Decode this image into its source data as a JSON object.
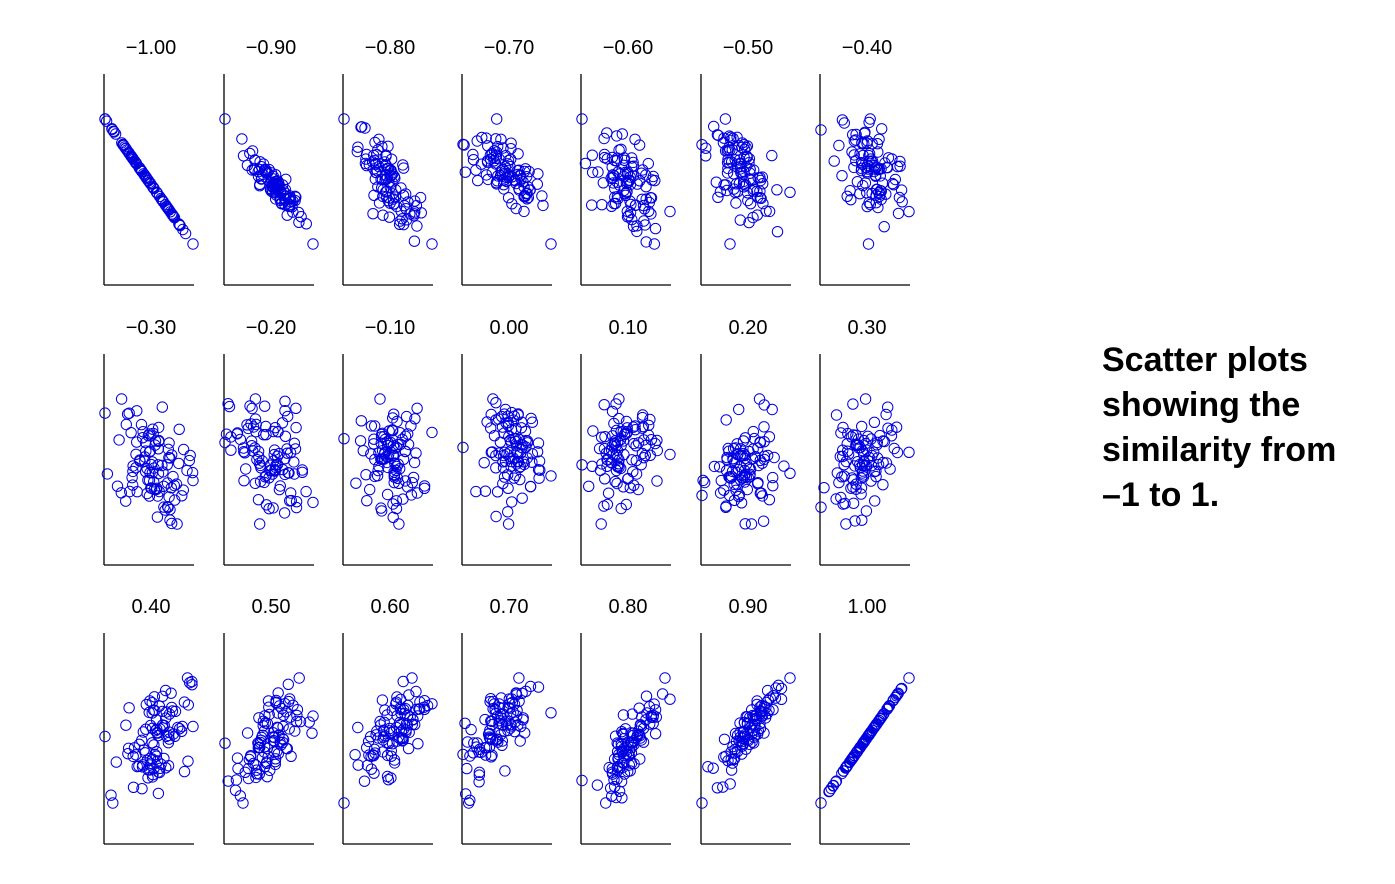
{
  "caption": {
    "lines": [
      "Scatter plots",
      "showing the",
      "similarity from",
      "–1 to 1."
    ]
  },
  "marker_color": "#0000e0",
  "chart_data": {
    "type": "scatter",
    "marker": "open-circle",
    "axes": "left-and-bottom-lines-only",
    "ticks": "none",
    "points_per_panel": 100,
    "layout": "3 rows x 7 columns",
    "panels": [
      {
        "title": "−1.00",
        "correlation": -1.0
      },
      {
        "title": "−0.90",
        "correlation": -0.9
      },
      {
        "title": "−0.80",
        "correlation": -0.8
      },
      {
        "title": "−0.70",
        "correlation": -0.7
      },
      {
        "title": "−0.60",
        "correlation": -0.6
      },
      {
        "title": "−0.50",
        "correlation": -0.5
      },
      {
        "title": "−0.40",
        "correlation": -0.4
      },
      {
        "title": "−0.30",
        "correlation": -0.3
      },
      {
        "title": "−0.20",
        "correlation": -0.2
      },
      {
        "title": "−0.10",
        "correlation": -0.1
      },
      {
        "title": "0.00",
        "correlation": 0.0
      },
      {
        "title": "0.10",
        "correlation": 0.1
      },
      {
        "title": "0.20",
        "correlation": 0.2
      },
      {
        "title": "0.30",
        "correlation": 0.3
      },
      {
        "title": "0.40",
        "correlation": 0.4
      },
      {
        "title": "0.50",
        "correlation": 0.5
      },
      {
        "title": "0.60",
        "correlation": 0.6
      },
      {
        "title": "0.70",
        "correlation": 0.7
      },
      {
        "title": "0.80",
        "correlation": 0.8
      },
      {
        "title": "0.90",
        "correlation": 0.9
      },
      {
        "title": "1.00",
        "correlation": 1.0
      }
    ]
  }
}
